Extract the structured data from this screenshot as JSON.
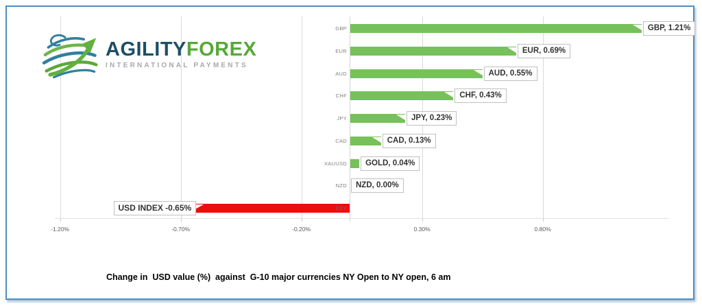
{
  "logo": {
    "brand_agility": "AGILITY",
    "brand_forex": "FOREX",
    "tagline": "INTERNATIONAL PAYMENTS"
  },
  "caption": {
    "text": "Change in  USD value (%)  against  G-10 major currencies NY Open to NY open, 6 am"
  },
  "colors": {
    "bar_green": "#77C15A",
    "bar_red": "#EE0D0D",
    "frame_blue": "#4B8FC2",
    "gridline": "#D9D9D9",
    "category_label": "#7F7F7F",
    "tick_label": "#595959",
    "label_box_border": "#BFBFBF",
    "logo_navy": "#1D4E66",
    "logo_green": "#56A839"
  },
  "chart_data": {
    "type": "bar",
    "orientation": "horizontal",
    "title": "Change in  USD value (%)  against  G-10 major currencies NY Open to NY open, 6 am",
    "categories": [
      "GBP",
      "EUR",
      "AUD",
      "CHF",
      "JPY",
      "CAD",
      "XAUUSD",
      "NZD",
      "DXY"
    ],
    "values": [
      1.21,
      0.69,
      0.55,
      0.43,
      0.23,
      0.13,
      0.04,
      0.0,
      -0.65
    ],
    "data_labels": [
      "GBP, 1.21%",
      "EUR, 0.69%",
      "AUD, 0.55%",
      "CHF, 0.43%",
      "JPY, 0.23%",
      "CAD, 0.13%",
      "GOLD, 0.04%",
      "NZD, 0.00%",
      "USD INDEX -0.65%"
    ],
    "bar_colors": [
      "#77C15A",
      "#77C15A",
      "#77C15A",
      "#77C15A",
      "#77C15A",
      "#77C15A",
      "#77C15A",
      "#77C15A",
      "#EE0D0D"
    ],
    "x_ticks": [
      "-1.20%",
      "-0.70%",
      "-0.20%",
      "0.30%",
      "0.80%"
    ],
    "x_tick_values": [
      -1.2,
      -0.7,
      -0.2,
      0.3,
      0.8
    ],
    "xlim": [
      -1.25,
      1.45
    ],
    "grid": "vertical",
    "legend": "none"
  }
}
